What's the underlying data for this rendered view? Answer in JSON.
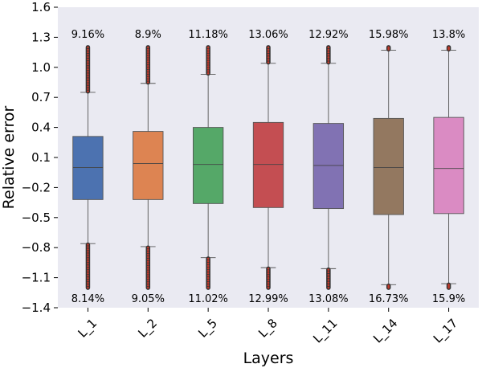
{
  "chart_data": {
    "type": "box",
    "title": "",
    "xlabel": "Layers",
    "ylabel": "Relative error",
    "ylim": [
      -1.4,
      1.6
    ],
    "yticks": [
      -1.4,
      -1.1,
      -0.8,
      -0.5,
      -0.2,
      0.1,
      0.4,
      0.7,
      1.0,
      1.3,
      1.6
    ],
    "ytick_labels": [
      "−1.4",
      "−1.1",
      "−0.8",
      "−0.5",
      "−0.2",
      "0.1",
      "0.4",
      "0.7",
      "1.0",
      "1.3",
      "1.6"
    ],
    "background": "#eaeaf2",
    "grid": false,
    "outlier_color": "#c0392b",
    "boxes": [
      {
        "label": "L_1",
        "color": "#4c72b0",
        "whisker_low": -0.76,
        "q1": -0.32,
        "median": 0.0,
        "q3": 0.31,
        "whisker_high": 0.75,
        "outliers_low": [
          -0.77,
          -1.2
        ],
        "outliers_high": [
          0.76,
          1.2
        ],
        "pct_top": "9.16%",
        "pct_bottom": "8.14%"
      },
      {
        "label": "L_2",
        "color": "#dd8452",
        "whisker_low": -0.79,
        "q1": -0.32,
        "median": 0.04,
        "q3": 0.36,
        "whisker_high": 0.84,
        "outliers_low": [
          -0.8,
          -1.2
        ],
        "outliers_high": [
          0.85,
          1.2
        ],
        "pct_top": "8.9%",
        "pct_bottom": "9.05%"
      },
      {
        "label": "L_5",
        "color": "#55a868",
        "whisker_low": -0.9,
        "q1": -0.36,
        "median": 0.03,
        "q3": 0.4,
        "whisker_high": 0.93,
        "outliers_low": [
          -0.91,
          -1.2
        ],
        "outliers_high": [
          0.94,
          1.2
        ],
        "pct_top": "11.18%",
        "pct_bottom": "11.02%"
      },
      {
        "label": "L_8",
        "color": "#c44e52",
        "whisker_low": -1.0,
        "q1": -0.4,
        "median": 0.03,
        "q3": 0.45,
        "whisker_high": 1.04,
        "outliers_low": [
          -1.01,
          -1.2
        ],
        "outliers_high": [
          1.05,
          1.2
        ],
        "pct_top": "13.06%",
        "pct_bottom": "12.99%"
      },
      {
        "label": "L_11",
        "color": "#8172b3",
        "whisker_low": -1.01,
        "q1": -0.41,
        "median": 0.02,
        "q3": 0.44,
        "whisker_high": 1.04,
        "outliers_low": [
          -1.02,
          -1.2
        ],
        "outliers_high": [
          1.05,
          1.2
        ],
        "pct_top": "12.92%",
        "pct_bottom": "13.08%"
      },
      {
        "label": "L_14",
        "color": "#937860",
        "whisker_low": -1.17,
        "q1": -0.47,
        "median": 0.0,
        "q3": 0.49,
        "whisker_high": 1.17,
        "outliers_low": [
          -1.18,
          -1.2
        ],
        "outliers_high": [
          1.18,
          1.2
        ],
        "pct_top": "15.98%",
        "pct_bottom": "16.73%"
      },
      {
        "label": "L_17",
        "color": "#da8bc3",
        "whisker_low": -1.16,
        "q1": -0.46,
        "median": -0.01,
        "q3": 0.5,
        "whisker_high": 1.17,
        "outliers_low": [
          -1.17,
          -1.2
        ],
        "outliers_high": [
          1.18,
          1.2
        ],
        "pct_top": "13.8%",
        "pct_bottom": "15.9%"
      }
    ]
  }
}
